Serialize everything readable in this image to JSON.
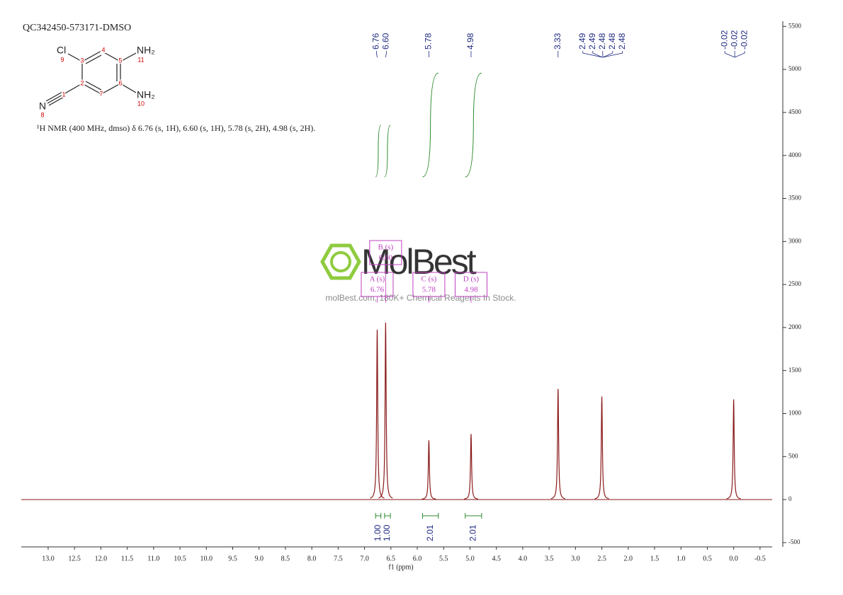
{
  "chart_data": {
    "type": "nmr",
    "title": "QC342450-573171-DMSO",
    "description": "¹H NMR (400 MHz, dmso) δ 6.76 (s, 1H), 6.60 (s, 1H), 5.78 (s, 2H), 4.98 (s, 2H).",
    "x_label": "f1 (ppm)",
    "xlim": [
      13.51,
      -0.73
    ],
    "xticks": [
      {
        "value": 13,
        "label": "13.0"
      },
      12.5,
      {
        "value": 12,
        "label": "12.0"
      },
      11.5,
      {
        "value": 11,
        "label": "11.0"
      },
      10.5,
      {
        "value": 10,
        "label": "10.0"
      },
      9.5,
      {
        "value": 9,
        "label": "9.0"
      },
      8.5,
      {
        "value": 8,
        "label": "8.0"
      },
      7.5,
      {
        "value": 7,
        "label": "7.0"
      },
      6.5,
      {
        "value": 6,
        "label": "6.0"
      },
      5.5,
      {
        "value": 5,
        "label": "5.0"
      },
      4.5,
      {
        "value": 4,
        "label": "4.0"
      },
      3.5,
      {
        "value": 3,
        "label": "3.0"
      },
      2.5,
      {
        "value": 2,
        "label": "2.0"
      },
      1.5,
      {
        "value": 1,
        "label": "1.0"
      },
      0.5,
      {
        "value": 0,
        "label": "0.0"
      },
      -0.5
    ],
    "ylim": [
      -550,
      5560
    ],
    "yticks": [
      -500,
      0,
      500,
      1000,
      1500,
      2000,
      2500,
      3000,
      3500,
      4000,
      4500,
      5000,
      5500
    ],
    "color": "#8b1a1a",
    "peaks": {
      "x": [
        6.76,
        6.6,
        5.78,
        4.98,
        3.33,
        2.5,
        0.0
      ],
      "values": [
        1975,
        2057,
        689,
        762,
        1287,
        1197,
        1164
      ]
    },
    "peak_labels": {
      "values": [
        6.76,
        6.6,
        5.78,
        4.98,
        3.33,
        2.49,
        2.49,
        2.48,
        2.48,
        2.48,
        -0.02,
        -0.02,
        -0.02
      ],
      "value_labels": [
        "6.76",
        "6.60",
        "5.78",
        "4.98",
        "3.33",
        "2.49",
        "2.49",
        "2.48",
        "2.48",
        "2.48",
        "-0.02",
        "-0.02",
        "-0.02"
      ],
      "color": "#1f2a80"
    },
    "integrals": {
      "from": [
        6.79,
        6.62,
        5.9,
        5.09
      ],
      "to": [
        6.69,
        6.51,
        5.6,
        4.78
      ],
      "values": [
        1.0,
        1.0,
        2.01,
        2.01
      ],
      "value_labels": [
        "1.00",
        "1.00",
        "2.01",
        "2.01"
      ],
      "color": "#2e8b2e"
    },
    "multiplets": {
      "names": [
        "A (s)",
        "B (s)",
        "C (s)",
        "D (s)"
      ],
      "values": [
        6.76,
        6.6,
        5.78,
        4.98
      ],
      "value_labels": [
        "6.76",
        "6.60",
        "5.78",
        "4.98"
      ],
      "color": "#c040c0"
    }
  },
  "molecule": {
    "labels": [
      {
        "symbol": "Cl",
        "number": 9
      },
      {
        "symbol": "NH₂",
        "number": 11
      },
      {
        "symbol": "NH₂",
        "number": 10
      },
      {
        "symbol": "N",
        "number": 8
      }
    ],
    "carbons": [
      3,
      4,
      5,
      6,
      7,
      2,
      1
    ]
  },
  "watermark": {
    "brand": "MolBest",
    "tagline": "molBest.com, 180K+ Chemical Reagents In Stock."
  }
}
